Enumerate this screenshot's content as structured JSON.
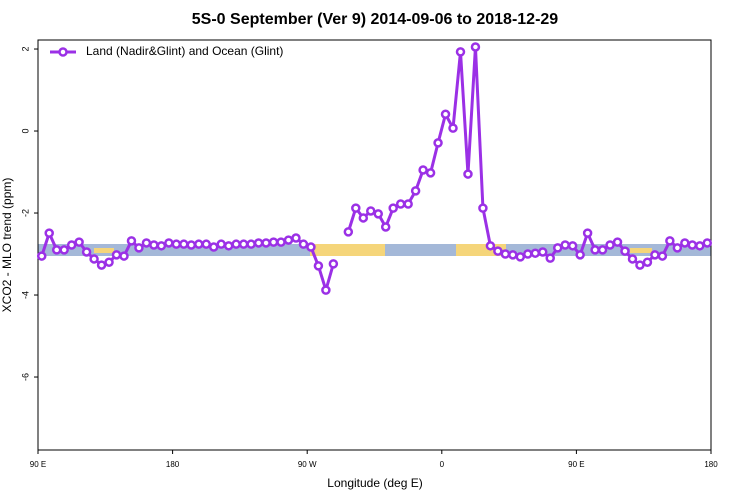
{
  "chart_data": {
    "type": "line",
    "title": "5S-0 September (Ver 9)   2014-09-06 to 2018-12-29",
    "xlabel": "Longitude (deg E)",
    "ylabel": "XCO2 - MLO trend (ppm)",
    "x": [
      92.5,
      97.5,
      102.5,
      107.5,
      112.5,
      117.5,
      122.5,
      127.5,
      132.5,
      137.5,
      142.5,
      147.5,
      152.5,
      157.5,
      162.5,
      167.5,
      172.5,
      177.5,
      182.5,
      187.5,
      192.5,
      197.5,
      202.5,
      207.5,
      212.5,
      217.5,
      222.5,
      227.5,
      232.5,
      237.5,
      242.5,
      247.5,
      252.5,
      257.5,
      262.5,
      267.5,
      272.5,
      277.5,
      282.5,
      287.5,
      292.5,
      297.5,
      302.5,
      307.5,
      312.5,
      317.5,
      322.5,
      327.5,
      332.5,
      337.5,
      342.5,
      347.5,
      352.5,
      357.5,
      362.5,
      367.5,
      372.5,
      377.5,
      382.5,
      387.5,
      392.5,
      397.5,
      402.5,
      407.5,
      412.5,
      417.5,
      422.5,
      427.5,
      432.5,
      437.5,
      442.5,
      447.5,
      452.5,
      457.5,
      462.5,
      467.5,
      472.5,
      477.5,
      482.5,
      487.5,
      492.5,
      497.5,
      502.5,
      507.5,
      512.5,
      517.5,
      522.5,
      527.5,
      532.5,
      537.5
    ],
    "series": [
      {
        "name": "Land (Nadir&Glint) and Ocean (Glint)",
        "color": "#9b30e6",
        "values": [
          -3.05,
          -2.49,
          -2.9,
          -2.9,
          -2.78,
          -2.71,
          -2.95,
          -3.12,
          -3.27,
          -3.2,
          -3.02,
          -3.05,
          -2.68,
          -2.85,
          -2.73,
          -2.78,
          -2.8,
          -2.73,
          -2.76,
          -2.76,
          -2.78,
          -2.76,
          -2.76,
          -2.83,
          -2.76,
          -2.8,
          -2.76,
          -2.76,
          -2.76,
          -2.73,
          -2.73,
          -2.71,
          -2.71,
          -2.66,
          -2.61,
          -2.76,
          -2.83,
          -3.29,
          -3.88,
          -3.24,
          null,
          -2.46,
          -1.88,
          -2.12,
          -1.95,
          -2.02,
          -2.34,
          -1.88,
          -1.78,
          -1.78,
          -1.46,
          -0.95,
          -1.02,
          -0.29,
          0.41,
          0.07,
          1.93,
          -1.05,
          2.05,
          -1.88,
          -2.8,
          -2.93,
          -3.0,
          -3.02,
          -3.07,
          -3.0,
          -2.98,
          -2.95,
          -3.1,
          -2.85,
          -2.78,
          -2.8,
          -3.02,
          -2.49,
          -2.9,
          -2.9,
          -2.78,
          -2.71,
          -2.93,
          -3.12,
          -3.27,
          -3.2,
          -3.02,
          -3.05,
          -2.68,
          -2.85,
          -2.73,
          -2.78,
          -2.8,
          -2.73
        ]
      }
    ],
    "xlim": [
      90,
      540
    ],
    "xticks": [
      {
        "value": 90,
        "label": "90 E"
      },
      {
        "value": 180,
        "label": "180"
      },
      {
        "value": 270,
        "label": "90 W"
      },
      {
        "value": 360,
        "label": "0"
      },
      {
        "value": 450,
        "label": "90 E"
      },
      {
        "value": 540,
        "label": "180"
      }
    ],
    "ylim": [
      -7.78,
      2.22
    ],
    "yticks": [
      2,
      0,
      -2,
      -4,
      -6
    ],
    "legend": "upper left"
  }
}
